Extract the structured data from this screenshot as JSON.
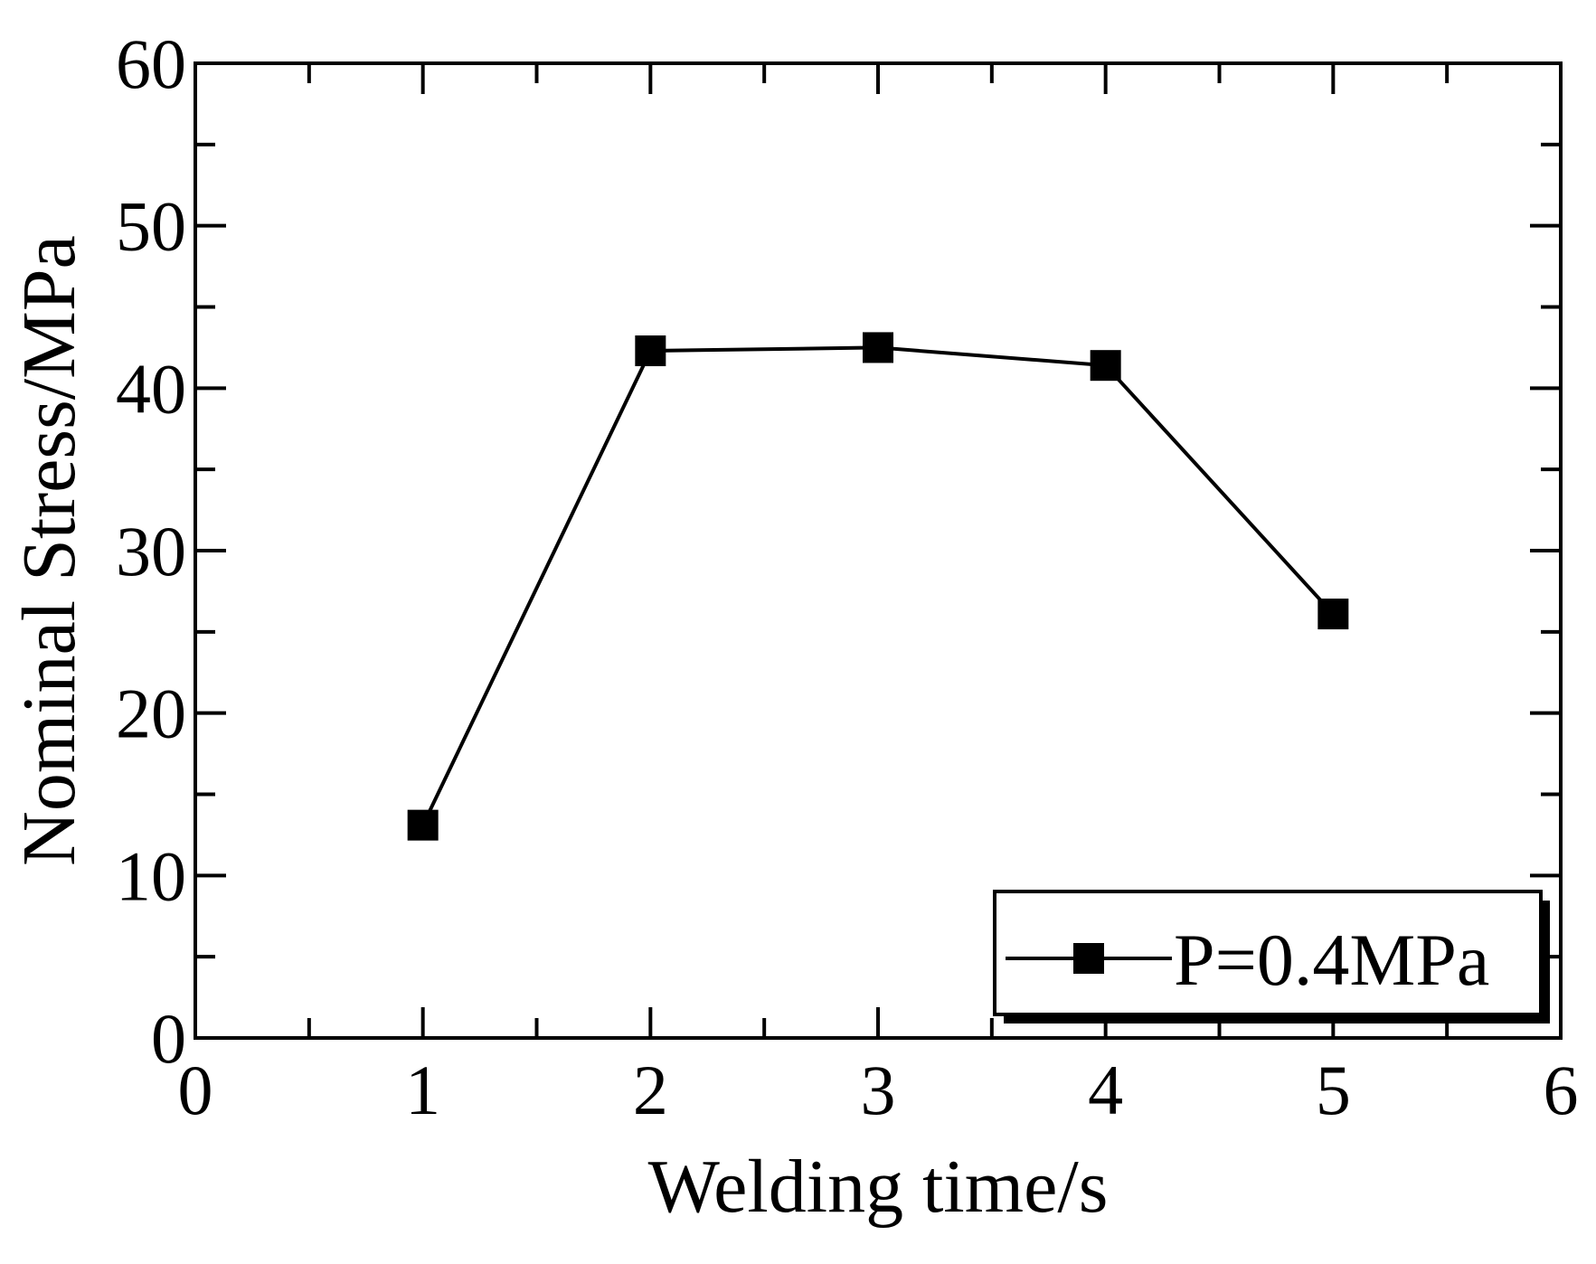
{
  "chart_data": {
    "type": "line",
    "xlabel": "Welding time/s",
    "ylabel": "Nominal Stress/MPa",
    "xlim": [
      0,
      6
    ],
    "ylim": [
      0,
      60
    ],
    "x_ticks": [
      "0",
      "1",
      "2",
      "3",
      "4",
      "5",
      "6"
    ],
    "y_ticks": [
      "0",
      "10",
      "20",
      "30",
      "40",
      "50",
      "60"
    ],
    "grid": false,
    "legend_position": "bottom-right",
    "series": [
      {
        "name": "P=0.4MPa",
        "marker": "square",
        "color": "#000000",
        "x": [
          1,
          2,
          3,
          4,
          5
        ],
        "y": [
          13.1,
          42.3,
          42.5,
          41.4,
          26.1
        ]
      }
    ]
  }
}
